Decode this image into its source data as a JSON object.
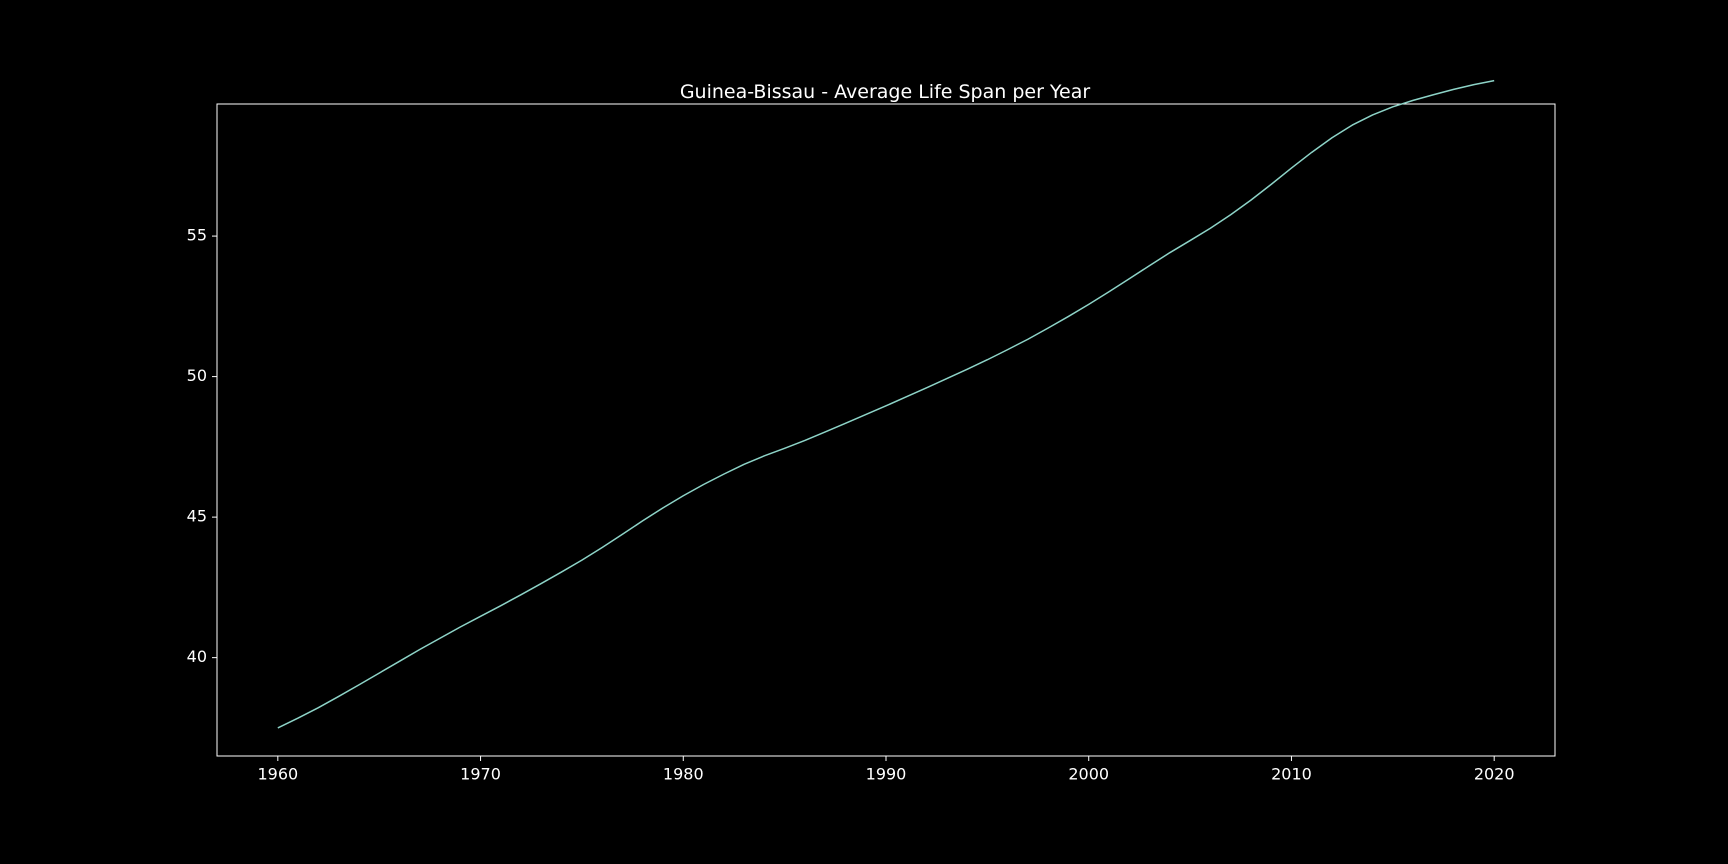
{
  "chart_data": {
    "type": "line",
    "title": "Guinea-Bissau - Average Life Span per Year",
    "xlabel": "",
    "ylabel": "",
    "xlim": [
      1957,
      2023
    ],
    "ylim": [
      36.5,
      59.7
    ],
    "grid": false,
    "colors": {
      "background": "#000000",
      "axes": "#ffffff",
      "line": "#8dd3c7"
    },
    "x_ticks": [
      1960,
      1970,
      1980,
      1990,
      2000,
      2010,
      2020
    ],
    "x_tick_labels": [
      "1960",
      "1970",
      "1980",
      "1990",
      "2000",
      "2010",
      "2020"
    ],
    "y_ticks": [
      40,
      45,
      50,
      55
    ],
    "y_tick_labels": [
      "40",
      "45",
      "50",
      "55"
    ],
    "series": [
      {
        "x": [
          1960,
          1961,
          1962,
          1963,
          1964,
          1965,
          1966,
          1967,
          1968,
          1969,
          1970,
          1971,
          1972,
          1973,
          1974,
          1975,
          1976,
          1977,
          1978,
          1979,
          1980,
          1981,
          1982,
          1983,
          1984,
          1985,
          1986,
          1987,
          1988,
          1989,
          1990,
          1991,
          1992,
          1993,
          1994,
          1995,
          1996,
          1997,
          1998,
          1999,
          2000,
          2001,
          2002,
          2003,
          2004,
          2005,
          2006,
          2007,
          2008,
          2009,
          2010,
          2011,
          2012,
          2013,
          2014,
          2015,
          2016,
          2017,
          2018,
          2019,
          2020
        ],
        "y": [
          37.5,
          37.85,
          38.22,
          38.62,
          39.03,
          39.45,
          39.87,
          40.29,
          40.69,
          41.09,
          41.47,
          41.85,
          42.24,
          42.64,
          43.05,
          43.47,
          43.92,
          44.39,
          44.87,
          45.33,
          45.76,
          46.16,
          46.53,
          46.88,
          47.18,
          47.45,
          47.73,
          48.03,
          48.34,
          48.65,
          48.96,
          49.28,
          49.6,
          49.93,
          50.26,
          50.6,
          50.96,
          51.33,
          51.73,
          52.14,
          52.57,
          53.02,
          53.48,
          53.95,
          54.41,
          54.84,
          55.28,
          55.76,
          56.28,
          56.84,
          57.42,
          57.98,
          58.5,
          58.95,
          59.31,
          59.6,
          59.83,
          60.03,
          60.22,
          60.39,
          60.53
        ]
      }
    ]
  }
}
